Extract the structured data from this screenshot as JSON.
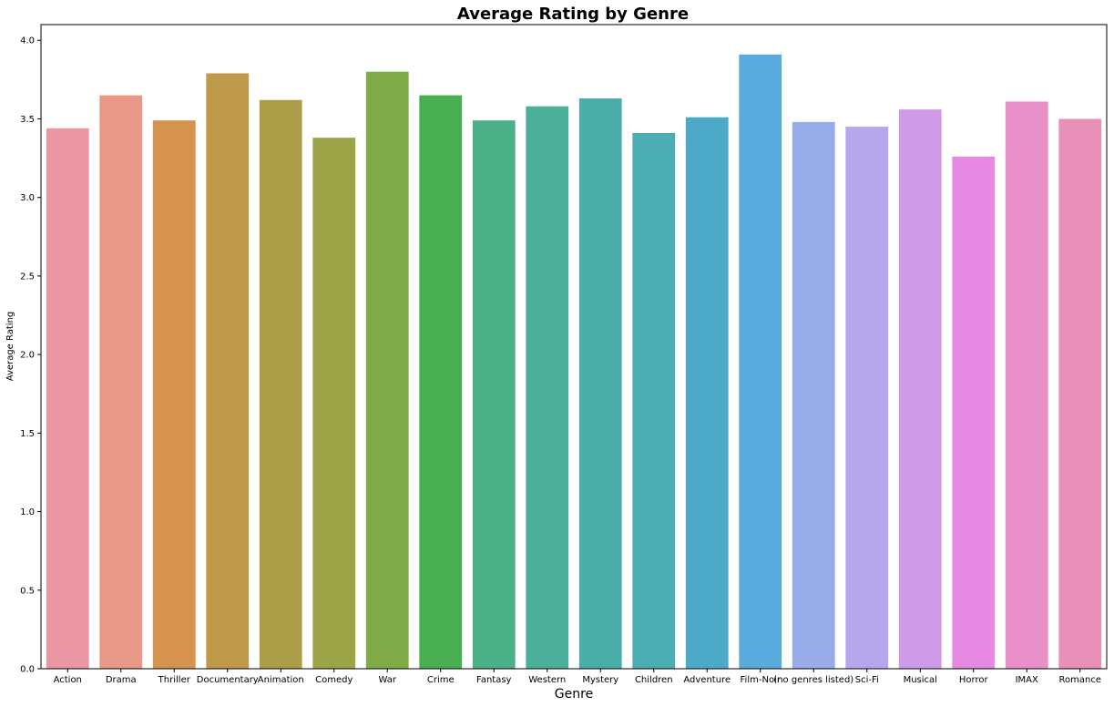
{
  "chart_data": {
    "type": "bar",
    "title": "Average Rating by Genre",
    "xlabel": "Genre",
    "ylabel": "Average Rating",
    "ylim": [
      0,
      4.1
    ],
    "yticks": [
      "0.0",
      "0.5",
      "1.0",
      "1.5",
      "2.0",
      "2.5",
      "3.0",
      "3.5",
      "4.0"
    ],
    "grid": false,
    "legend": "none",
    "categories": [
      "Action",
      "Drama",
      "Thriller",
      "Documentary",
      "Animation",
      "Comedy",
      "War",
      "Crime",
      "Fantasy",
      "Western",
      "Mystery",
      "Children",
      "Adventure",
      "Film-Noir",
      "(no genres listed)",
      "Sci-Fi",
      "Musical",
      "Horror",
      "IMAX",
      "Romance"
    ],
    "values": [
      3.44,
      3.65,
      3.49,
      3.79,
      3.62,
      3.38,
      3.8,
      3.65,
      3.49,
      3.58,
      3.63,
      3.41,
      3.51,
      3.91,
      3.48,
      3.45,
      3.56,
      3.26,
      3.61,
      3.5
    ],
    "colors": [
      "#ea96a3",
      "#e79886",
      "#d69350",
      "#c09a4b",
      "#ac9e48",
      "#9ba548",
      "#7faa48",
      "#49ad52",
      "#4baf87",
      "#4baf99",
      "#4bada8",
      "#4cadb5",
      "#4ca9c7",
      "#59abdd",
      "#98acea",
      "#b6a7ed",
      "#cf9be8",
      "#e689e2",
      "#e98fc8",
      "#e990b8"
    ]
  }
}
